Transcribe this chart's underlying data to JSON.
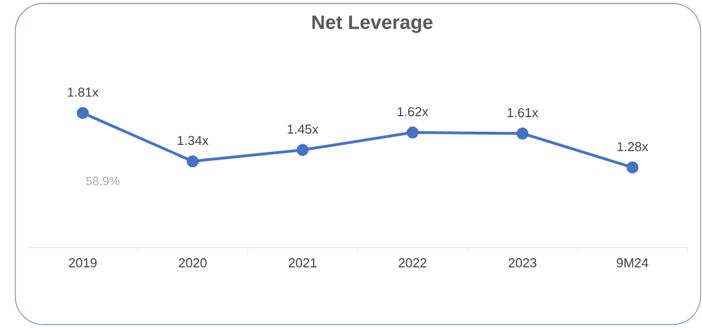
{
  "chart_data": {
    "type": "line",
    "title": "Net Leverage",
    "categories": [
      "2019",
      "2020",
      "2021",
      "2022",
      "2023",
      "9M24"
    ],
    "values": [
      1.81,
      1.34,
      1.45,
      1.62,
      1.61,
      1.28
    ],
    "value_labels": [
      "1.81x",
      "1.34x",
      "1.45x",
      "1.62x",
      "1.61x",
      "1.28x"
    ],
    "color": "#4472c4",
    "marker": "circle",
    "line_style": "solid",
    "annotations": [
      "58.9%"
    ]
  }
}
